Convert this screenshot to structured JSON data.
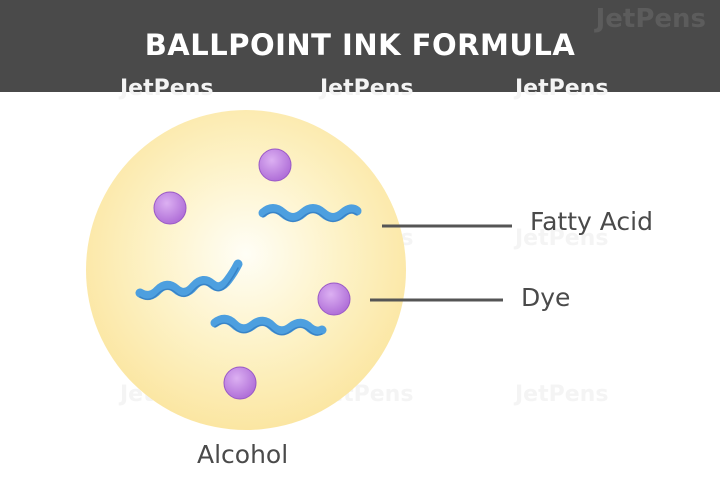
{
  "header": {
    "title": "BALLPOINT INK FORMULA",
    "brand": "JetPens"
  },
  "watermark": "JetPens",
  "diagram": {
    "labels": {
      "fatty_acid": "Fatty Acid",
      "dye": "Dye",
      "alcohol": "Alcohol"
    },
    "colors": {
      "header_bg": "#4a4a4a",
      "alcohol_fill": "#fbe9a9",
      "dye_fill": "#c58ae3",
      "fatty_acid_fill": "#4d9fdf",
      "leader_line": "#555555"
    }
  }
}
